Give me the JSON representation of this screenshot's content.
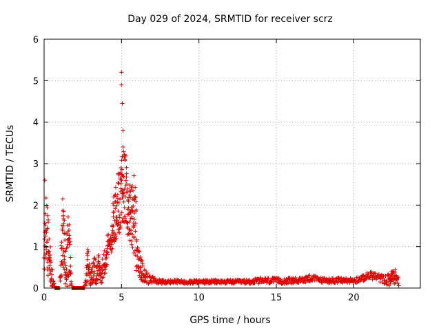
{
  "chart_data": {
    "type": "scatter",
    "title": "Day 029 of 2024, SRMTID for receiver scrz",
    "xlabel": "GPS time / hours",
    "ylabel": "SRMTID / TECUs",
    "xlim": [
      0,
      24.3
    ],
    "ylim": [
      0,
      6
    ],
    "xticks": [
      0,
      5,
      10,
      15,
      20
    ],
    "yticks": [
      0,
      1,
      2,
      3,
      4,
      5,
      6
    ],
    "xtick_labels": [
      "0",
      "5",
      "10",
      "15",
      "20"
    ],
    "ytick_labels": [
      "0",
      "1",
      "2",
      "3",
      "4",
      "5",
      "6"
    ],
    "grid": true,
    "marker": "+",
    "series_color": "#e00000",
    "profile": {
      "description": "approximate upper/lower envelope of the point cloud (x in hours, y in TECU)",
      "x": [
        0.0,
        0.1,
        0.2,
        0.3,
        0.4,
        0.5,
        0.6,
        0.7,
        0.8,
        1.0,
        1.2,
        1.3,
        1.4,
        1.5,
        1.6,
        1.8,
        2.0,
        2.3,
        2.6,
        2.8,
        3.0,
        3.2,
        3.5,
        3.7,
        3.9,
        4.1,
        4.3,
        4.5,
        4.7,
        4.9,
        5.0,
        5.1,
        5.2,
        5.3,
        5.4,
        5.6,
        5.8,
        5.9,
        6.0,
        6.2,
        6.4,
        6.6,
        7.0,
        7.5,
        8.0,
        9.0,
        10.0,
        11.0,
        12.0,
        13.0,
        14.0,
        15.0,
        16.0,
        16.5,
        17.0,
        17.2,
        17.5,
        18.0,
        19.0,
        20.0,
        20.5,
        21.0,
        21.3,
        21.6,
        22.0,
        22.3,
        22.6,
        22.9
      ],
      "upper": [
        0.8,
        2.5,
        2.0,
        1.6,
        1.1,
        0.5,
        0.4,
        0.0,
        0.0,
        0.0,
        2.1,
        1.9,
        0.8,
        1.6,
        1.9,
        0.0,
        0.0,
        0.0,
        0.0,
        1.1,
        0.4,
        0.7,
        0.8,
        0.5,
        1.1,
        1.3,
        1.4,
        2.3,
        2.8,
        2.9,
        3.1,
        3.4,
        3.3,
        3.2,
        2.5,
        2.5,
        2.8,
        2.7,
        1.1,
        0.9,
        0.6,
        0.4,
        0.3,
        0.2,
        0.2,
        0.2,
        0.2,
        0.2,
        0.2,
        0.2,
        0.25,
        0.25,
        0.25,
        0.25,
        0.3,
        0.35,
        0.3,
        0.25,
        0.25,
        0.25,
        0.3,
        0.4,
        0.4,
        0.35,
        0.3,
        0.35,
        0.5,
        0.3
      ],
      "lower": [
        0.3,
        0.8,
        0.3,
        0.2,
        0.1,
        0.05,
        0.0,
        0.0,
        0.0,
        0.0,
        0.5,
        0.3,
        0.0,
        0.05,
        0.1,
        0.0,
        0.0,
        0.0,
        0.0,
        0.1,
        0.05,
        0.05,
        0.05,
        0.1,
        0.3,
        0.5,
        0.8,
        1.0,
        1.2,
        1.3,
        1.5,
        1.6,
        1.4,
        1.5,
        1.2,
        0.9,
        0.8,
        0.4,
        0.3,
        0.2,
        0.15,
        0.1,
        0.1,
        0.1,
        0.1,
        0.1,
        0.1,
        0.1,
        0.1,
        0.1,
        0.1,
        0.1,
        0.1,
        0.12,
        0.15,
        0.15,
        0.15,
        0.12,
        0.12,
        0.12,
        0.15,
        0.2,
        0.2,
        0.15,
        0.1,
        0.05,
        0.1,
        0.05
      ]
    },
    "outliers": [
      {
        "x": 5.0,
        "y": 5.2
      },
      {
        "x": 5.0,
        "y": 4.9
      },
      {
        "x": 5.05,
        "y": 4.45
      },
      {
        "x": 5.1,
        "y": 3.8
      },
      {
        "x": 5.1,
        "y": 3.4
      },
      {
        "x": 5.2,
        "y": 3.2
      },
      {
        "x": 0.05,
        "y": 2.6
      },
      {
        "x": 1.2,
        "y": 2.15
      }
    ]
  }
}
